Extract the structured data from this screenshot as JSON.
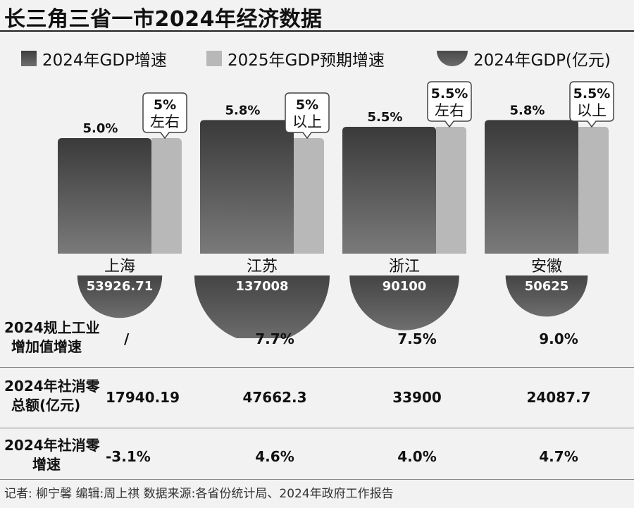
{
  "title": "长三角三省一市2024年经济数据",
  "legend": {
    "gdp_growth_2024": "2024年GDP增速",
    "gdp_growth_2025_target": "2025年GDP预期增速",
    "gdp_2024": "2024年GDP(亿元)"
  },
  "colors": {
    "bar_2024": "#555555",
    "bar_2025": "#b8b8b8",
    "gdp_semicircle": "#5a5a5a",
    "background": "#f2f2f2"
  },
  "chart_data": {
    "type": "bar",
    "title": "长三角三省一市2024年经济数据",
    "categories": [
      "上海",
      "江苏",
      "浙江",
      "安徽"
    ],
    "series": [
      {
        "name": "2024年GDP增速",
        "values": [
          5.0,
          5.8,
          5.5,
          5.8
        ],
        "labels": [
          "5.0%",
          "5.8%",
          "5.5%",
          "5.8%"
        ]
      },
      {
        "name": "2025年GDP预期增速",
        "values": [
          5.0,
          5.0,
          5.5,
          5.5
        ],
        "labels": [
          [
            "5%",
            "左右"
          ],
          [
            "5%",
            "以上"
          ],
          [
            "5.5%",
            "左右"
          ],
          [
            "5.5%",
            "以上"
          ]
        ]
      },
      {
        "name": "2024年GDP(亿元)",
        "values": [
          53926.71,
          137008,
          90100,
          50625
        ],
        "labels": [
          "53926.71",
          "137008",
          "90100",
          "50625"
        ]
      }
    ],
    "ylim": [
      0,
      6
    ]
  },
  "table": {
    "rows": [
      {
        "label": [
          "2024规上工业",
          "增加值增速"
        ],
        "values": [
          "/",
          "7.7%",
          "7.5%",
          "9.0%"
        ]
      },
      {
        "label": [
          "2024年社消零",
          "总额(亿元)"
        ],
        "values": [
          "17940.19",
          "47662.3",
          "33900",
          "24087.7"
        ]
      },
      {
        "label": [
          "2024年社消零",
          "增速"
        ],
        "values": [
          "-3.1%",
          "4.6%",
          "4.0%",
          "4.7%"
        ]
      }
    ]
  },
  "footer": "记者: 柳宁馨   编辑:周上祺   数据来源:各省份统计局、2024年政府工作报告"
}
